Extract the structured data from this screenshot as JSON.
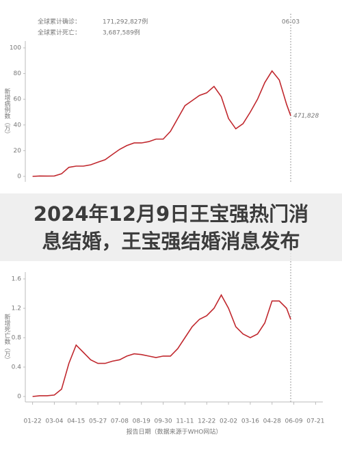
{
  "banner": {
    "title": "2024年12月9日王宝强热门消息结婚，王宝强结婚消息发布"
  },
  "chart_data": [
    {
      "type": "line",
      "y_label": "新增病例数（万）",
      "summary": [
        {
          "label": "全球累计确诊：",
          "value": "171,292,827例"
        },
        {
          "label": "全球累计死亡：",
          "value": "3,687,589例"
        }
      ],
      "marker": {
        "x": 498,
        "label": "06-03"
      },
      "x": [
        0,
        14,
        28,
        42,
        56,
        70,
        84,
        98,
        112,
        126,
        140,
        154,
        168,
        182,
        196,
        210,
        224,
        238,
        252,
        266,
        280,
        294,
        308,
        322,
        336,
        350,
        364,
        378,
        392,
        406,
        420,
        434,
        448,
        462,
        476,
        490,
        498
      ],
      "xlim": [
        -14,
        560
      ],
      "ylim": [
        0,
        100
      ],
      "yticks": [
        0,
        20,
        40,
        60,
        80,
        100
      ],
      "series": [
        {
          "color": "#c0272d",
          "values": [
            0,
            0.3,
            0.2,
            0.3,
            2,
            7,
            8,
            8,
            9,
            11,
            13,
            17,
            21,
            24,
            26,
            26,
            27,
            29,
            29,
            35,
            45,
            55,
            59,
            63,
            65,
            70,
            62,
            45,
            37,
            41,
            50,
            60,
            73,
            82,
            75,
            56,
            47.1828
          ],
          "value_labels": [
            null,
            null,
            null,
            null,
            null,
            null,
            null,
            null,
            null,
            null,
            null,
            null,
            null,
            null,
            null,
            null,
            null,
            null,
            null,
            null,
            null,
            null,
            null,
            null,
            null,
            null,
            null,
            null,
            null,
            null,
            null,
            null,
            null,
            null,
            null,
            null,
            "471,828"
          ]
        }
      ]
    },
    {
      "type": "line",
      "y_label": "新增死亡数（万）",
      "x_label": "报告日期（数据来源于WHO网站）",
      "marker": {
        "x": 498
      },
      "x": [
        0,
        14,
        28,
        42,
        56,
        70,
        84,
        98,
        112,
        126,
        140,
        154,
        168,
        182,
        196,
        210,
        224,
        238,
        252,
        266,
        280,
        294,
        308,
        322,
        336,
        350,
        364,
        378,
        392,
        406,
        420,
        434,
        448,
        462,
        476,
        490,
        498
      ],
      "xlim": [
        -14,
        560
      ],
      "xticks": [
        {
          "value": 0,
          "label": "01-22"
        },
        {
          "value": 42,
          "label": "03-04"
        },
        {
          "value": 84,
          "label": "04-15"
        },
        {
          "value": 126,
          "label": "05-27"
        },
        {
          "value": 168,
          "label": "07-08"
        },
        {
          "value": 210,
          "label": "08-19"
        },
        {
          "value": 252,
          "label": "09-30"
        },
        {
          "value": 294,
          "label": "11-11"
        },
        {
          "value": 336,
          "label": "12-22"
        },
        {
          "value": 378,
          "label": "02-02"
        },
        {
          "value": 420,
          "label": "03-16"
        },
        {
          "value": 462,
          "label": "04-28"
        },
        {
          "value": 504,
          "label": "06-09"
        },
        {
          "value": 546,
          "label": "07-21"
        }
      ],
      "ylim": [
        0,
        1.6
      ],
      "yticks": [
        0,
        0.4,
        0.8,
        1.2,
        1.6
      ],
      "series": [
        {
          "color": "#c0272d",
          "values": [
            0,
            0.01,
            0.01,
            0.02,
            0.1,
            0.45,
            0.7,
            0.6,
            0.5,
            0.45,
            0.45,
            0.48,
            0.5,
            0.55,
            0.58,
            0.57,
            0.55,
            0.53,
            0.55,
            0.55,
            0.65,
            0.8,
            0.95,
            1.05,
            1.1,
            1.2,
            1.38,
            1.2,
            0.95,
            0.85,
            0.8,
            0.85,
            1.0,
            1.3,
            1.3,
            1.2,
            1.05
          ]
        }
      ]
    }
  ]
}
